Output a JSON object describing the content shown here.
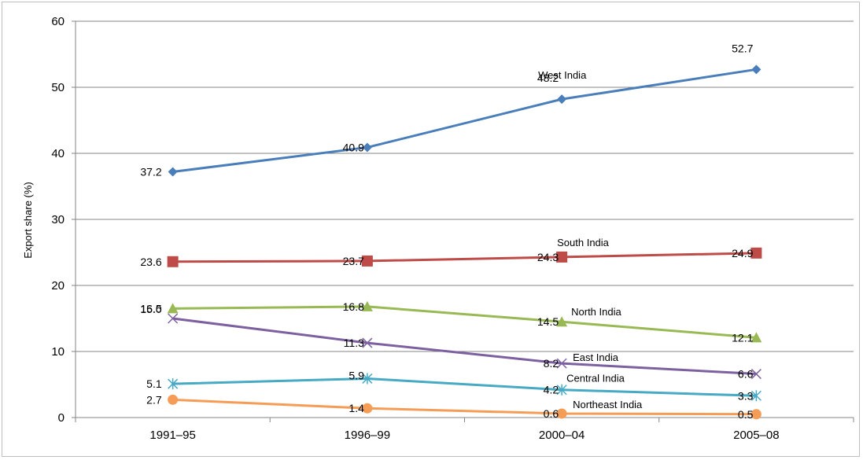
{
  "chart_data": {
    "type": "line",
    "title": "",
    "xlabel": "",
    "ylabel": "Export share (%)",
    "ylim": [
      0,
      60
    ],
    "yticks": [
      "0",
      "10",
      "20",
      "30",
      "40",
      "50",
      "60"
    ],
    "categories": [
      "1991–95",
      "1996–99",
      "2000–04",
      "2005–08"
    ],
    "grid": true,
    "legend": "none (series labelled inline)",
    "series": [
      {
        "name": "West India",
        "color": "#4a7ebb",
        "marker": "diamond",
        "values": [
          37.2,
          40.9,
          48.2,
          52.7
        ],
        "labels": [
          "37.2",
          "40.9",
          "48.2",
          "52.7"
        ]
      },
      {
        "name": "South India",
        "color": "#be4b48",
        "marker": "square",
        "values": [
          23.6,
          23.7,
          24.3,
          24.9
        ],
        "labels": [
          "23.6",
          "23.7",
          "24.3",
          "24.9"
        ]
      },
      {
        "name": "North India",
        "color": "#98b954",
        "marker": "triangle",
        "values": [
          16.5,
          16.8,
          14.5,
          12.1
        ],
        "labels": [
          "16.5",
          "16.8",
          "14.5",
          "12.1"
        ]
      },
      {
        "name": "East India",
        "color": "#7d60a0",
        "marker": "x",
        "values": [
          15.0,
          11.3,
          8.2,
          6.6
        ],
        "labels": [
          "15.0",
          "11.3",
          "8.2",
          "6.6"
        ]
      },
      {
        "name": "Central India",
        "color": "#46aac5",
        "marker": "star",
        "values": [
          5.1,
          5.9,
          4.2,
          3.3
        ],
        "labels": [
          "5.1",
          "5.9",
          "4.2",
          "3.3"
        ]
      },
      {
        "name": "Northeast India",
        "color": "#f59d56",
        "marker": "circle",
        "values": [
          2.7,
          1.4,
          0.6,
          0.5
        ],
        "labels": [
          "2.7",
          "1.4",
          "0.6",
          "0.5"
        ]
      }
    ]
  }
}
